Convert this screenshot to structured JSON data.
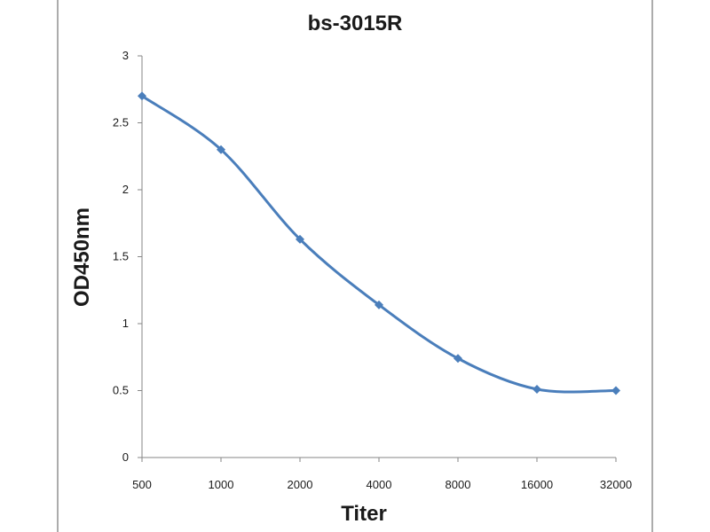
{
  "chart_data": {
    "type": "line",
    "title": "bs-3015R",
    "xlabel": "Titer",
    "ylabel": "OD450nm",
    "categories": [
      "500",
      "1000",
      "2000",
      "4000",
      "8000",
      "16000",
      "32000"
    ],
    "series": [
      {
        "values": [
          2.7,
          2.3,
          1.63,
          1.14,
          0.74,
          0.51,
          0.5
        ]
      }
    ],
    "ylim": [
      0,
      3
    ],
    "yticks": [
      "0",
      "0.5",
      "1",
      "1.5",
      "2",
      "2.5",
      "3"
    ],
    "grid": false,
    "legend": "none",
    "colors": {
      "line": "#4a7ebb",
      "marker": "#4a7ebb",
      "axis": "#868686",
      "border": "#5a5a5a"
    }
  }
}
